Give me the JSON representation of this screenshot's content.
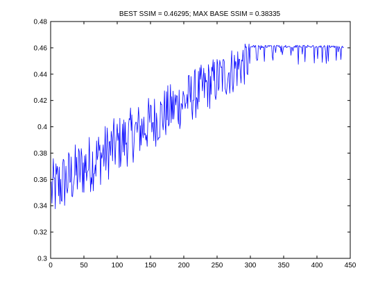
{
  "chart_data": {
    "type": "line",
    "title": "BEST SSIM = 0.46295; MAX BASE SSIM = 0.38335",
    "xlabel": "",
    "ylabel": "",
    "xlim": [
      0,
      450
    ],
    "ylim": [
      0.3,
      0.48
    ],
    "xticks": [
      0,
      50,
      100,
      150,
      200,
      250,
      300,
      350,
      400,
      450
    ],
    "yticks": [
      0.3,
      0.32,
      0.34,
      0.36,
      0.38,
      0.4,
      0.42,
      0.44,
      0.46,
      0.48
    ],
    "xtick_labels": [
      "0",
      "50",
      "100",
      "150",
      "200",
      "250",
      "300",
      "350",
      "400",
      "450"
    ],
    "ytick_labels": [
      "0.3",
      "0.32",
      "0.34",
      "0.36",
      "0.38",
      "0.4",
      "0.42",
      "0.44",
      "0.46",
      "0.48"
    ],
    "grid": false,
    "line_color": "#0000ff",
    "series": [
      {
        "n_points": 440,
        "x_range": [
          1,
          440
        ],
        "y_min": 0.317,
        "y_max": 0.46295,
        "start_mean": 0.348,
        "end_mean": 0.462,
        "plateau_x": 300,
        "note": "noisy line rising from ~0.34 at x=0 to a plateau near 0.462 after x≈300"
      }
    ]
  }
}
